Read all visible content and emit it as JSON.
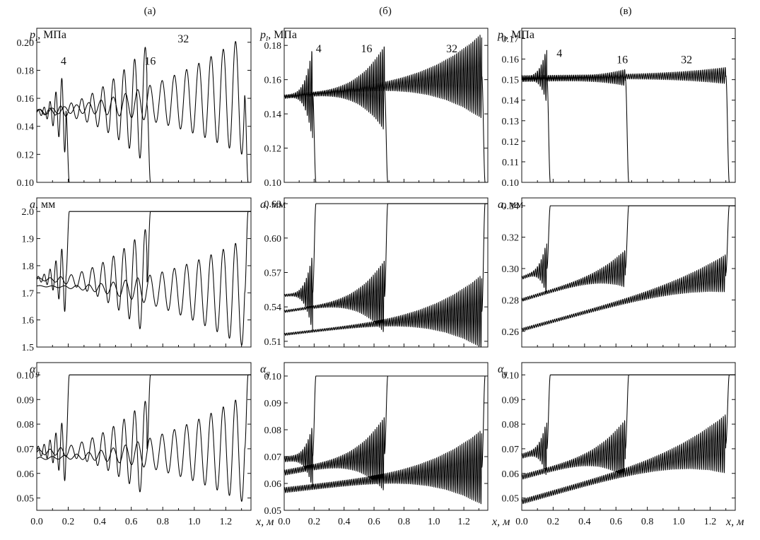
{
  "figure": {
    "column_labels": [
      "(а)",
      "(б)",
      "(в)"
    ],
    "x_axis_label": "x, м"
  },
  "chart_data": [
    {
      "id": "p-a",
      "column": 0,
      "row": 0,
      "type": "line",
      "ylabel_var": "p",
      "ylabel_sub": "l",
      "ylabel_unit": ", МПа",
      "xlim": [
        0,
        1.36
      ],
      "ylim": [
        0.1,
        0.21
      ],
      "xticks": [],
      "yticks": [
        "0.10",
        "0.12",
        "0.14",
        "0.16",
        "0.18",
        "0.20"
      ],
      "series_labels": [
        {
          "text": "4",
          "x": 0.17,
          "y": 0.184
        },
        {
          "text": "16",
          "x": 0.72,
          "y": 0.184
        },
        {
          "text": "32",
          "x": 0.93,
          "y": 0.2
        }
      ],
      "series": [
        {
          "name": "4",
          "front": 0.185,
          "osc": "slow",
          "base_start": 0.15,
          "base_end": 0.151,
          "amp_start": 0.002,
          "amp_end": 0.032,
          "after": 0.1
        },
        {
          "name": "16",
          "front": 0.7,
          "osc": "slow",
          "base_start": 0.15,
          "base_end": 0.155,
          "amp_start": 0.002,
          "amp_end": 0.043,
          "after": 0.1
        },
        {
          "name": "32",
          "front": 1.32,
          "osc": "slow",
          "base_start": 0.15,
          "base_end": 0.162,
          "amp_start": 0.002,
          "amp_end": 0.043,
          "after": 0.1
        }
      ]
    },
    {
      "id": "p-b",
      "column": 1,
      "row": 0,
      "type": "line",
      "ylabel_var": "p",
      "ylabel_sub": "l",
      "ylabel_unit": ", МПа",
      "xlim": [
        0,
        1.36
      ],
      "ylim": [
        0.1,
        0.19
      ],
      "xticks": [],
      "yticks": [
        "0.10",
        "0.12",
        "0.14",
        "0.16",
        "0.18"
      ],
      "series_labels": [
        {
          "text": "4",
          "x": 0.23,
          "y": 0.176
        },
        {
          "text": "16",
          "x": 0.55,
          "y": 0.176
        },
        {
          "text": "32",
          "x": 1.12,
          "y": 0.176
        }
      ],
      "series": [
        {
          "name": "4",
          "front": 0.19,
          "osc": "dense",
          "base_start": 0.15,
          "base_end": 0.152,
          "amp_start": 0.001,
          "amp_end": 0.028,
          "after": 0.1
        },
        {
          "name": "16",
          "front": 0.67,
          "osc": "dense",
          "base_start": 0.15,
          "base_end": 0.155,
          "amp_start": 0.001,
          "amp_end": 0.025,
          "after": 0.1
        },
        {
          "name": "32",
          "front": 1.32,
          "osc": "dense",
          "base_start": 0.15,
          "base_end": 0.162,
          "amp_start": 0.001,
          "amp_end": 0.025,
          "after": 0.1
        }
      ]
    },
    {
      "id": "p-v",
      "column": 2,
      "row": 0,
      "type": "line",
      "ylabel_var": "p",
      "ylabel_sub": "l",
      "ylabel_unit": ", МПа",
      "xlim": [
        0,
        1.36
      ],
      "ylim": [
        0.1,
        0.175
      ],
      "xticks": [],
      "yticks": [
        "0.10",
        "0.11",
        "0.12",
        "0.13",
        "0.14",
        "0.15",
        "0.16",
        "0.17"
      ],
      "series_labels": [
        {
          "text": "4",
          "x": 0.24,
          "y": 0.161
        },
        {
          "text": "16",
          "x": 0.64,
          "y": 0.158
        },
        {
          "text": "32",
          "x": 1.05,
          "y": 0.158
        }
      ],
      "series": [
        {
          "name": "4",
          "front": 0.16,
          "osc": "dense",
          "base_start": 0.15,
          "base_end": 0.152,
          "amp_start": 0.001,
          "amp_end": 0.014,
          "after": 0.1
        },
        {
          "name": "16",
          "front": 0.66,
          "osc": "dense",
          "base_start": 0.15,
          "base_end": 0.151,
          "amp_start": 0.001,
          "amp_end": 0.004,
          "after": 0.1
        },
        {
          "name": "32",
          "front": 1.3,
          "osc": "dense",
          "base_start": 0.151,
          "base_end": 0.152,
          "amp_start": 0.001,
          "amp_end": 0.004,
          "after": 0.1
        }
      ]
    },
    {
      "id": "a-a",
      "column": 0,
      "row": 1,
      "type": "line",
      "ylabel_var": "a",
      "ylabel_sub": "",
      "ylabel_unit": ", мм",
      "xlim": [
        0,
        1.36
      ],
      "ylim": [
        1.5,
        2.05
      ],
      "xticks": [],
      "yticks": [
        "1.5",
        "1.6",
        "1.7",
        "1.8",
        "1.9",
        "2.0"
      ],
      "series_labels": [],
      "series": [
        {
          "name": "4",
          "front": 0.185,
          "osc": "slow",
          "base_start": 1.75,
          "base_end": 1.76,
          "amp_start": 0.01,
          "amp_end": 0.14,
          "after": 2.0
        },
        {
          "name": "16",
          "front": 0.7,
          "osc": "slow",
          "base_start": 1.75,
          "base_end": 1.74,
          "amp_start": 0.005,
          "amp_end": 0.2,
          "after": 2.0
        },
        {
          "name": "32",
          "front": 1.32,
          "osc": "slow",
          "base_start": 1.725,
          "base_end": 1.7,
          "amp_start": 0.002,
          "amp_end": 0.2,
          "after": 2.0
        }
      ]
    },
    {
      "id": "a-b",
      "column": 1,
      "row": 1,
      "type": "line",
      "ylabel_var": "a",
      "ylabel_sub": "",
      "ylabel_unit": ", мм",
      "xlim": [
        0,
        1.36
      ],
      "ylim": [
        0.505,
        0.635
      ],
      "xticks": [],
      "yticks": [
        "0.51",
        "0.54",
        "0.57",
        "0.60",
        "0.63"
      ],
      "series_labels": [],
      "series": [
        {
          "name": "4",
          "front": 0.19,
          "osc": "dense",
          "base_start": 0.55,
          "base_end": 0.552,
          "amp_start": 0.001,
          "amp_end": 0.035,
          "after": 0.63
        },
        {
          "name": "16",
          "front": 0.67,
          "osc": "dense",
          "base_start": 0.536,
          "base_end": 0.549,
          "amp_start": 0.001,
          "amp_end": 0.032,
          "after": 0.63
        },
        {
          "name": "32",
          "front": 1.32,
          "osc": "dense",
          "base_start": 0.516,
          "base_end": 0.536,
          "amp_start": 0.001,
          "amp_end": 0.032,
          "after": 0.63
        }
      ]
    },
    {
      "id": "a-v",
      "column": 2,
      "row": 1,
      "type": "line",
      "ylabel_var": "a",
      "ylabel_sub": "",
      "ylabel_unit": ", мм",
      "xlim": [
        0,
        1.36
      ],
      "ylim": [
        0.25,
        0.345
      ],
      "xticks": [],
      "yticks": [
        "0.26",
        "0.28",
        "0.30",
        "0.32",
        "0.34"
      ],
      "series_labels": [],
      "series": [
        {
          "name": "4",
          "front": 0.16,
          "osc": "dense",
          "base_start": 0.294,
          "base_end": 0.3,
          "amp_start": 0.001,
          "amp_end": 0.018,
          "after": 0.34
        },
        {
          "name": "16",
          "front": 0.66,
          "osc": "dense",
          "base_start": 0.28,
          "base_end": 0.3,
          "amp_start": 0.001,
          "amp_end": 0.012,
          "after": 0.34
        },
        {
          "name": "32",
          "front": 1.3,
          "osc": "dense",
          "base_start": 0.261,
          "base_end": 0.297,
          "amp_start": 0.001,
          "amp_end": 0.012,
          "after": 0.34
        }
      ]
    },
    {
      "id": "ag-a",
      "column": 0,
      "row": 2,
      "type": "line",
      "ylabel_var": "α",
      "ylabel_sub": "g",
      "ylabel_unit": "",
      "xlim": [
        0,
        1.36
      ],
      "ylim": [
        0.045,
        0.105
      ],
      "xticks": [
        "0.0",
        "0.2",
        "0.4",
        "0.6",
        "0.8",
        "1.0",
        "1.2"
      ],
      "yticks": [
        "0.05",
        "0.06",
        "0.07",
        "0.08",
        "0.09",
        "0.10"
      ],
      "series_labels": [],
      "series": [
        {
          "name": "4",
          "front": 0.185,
          "osc": "slow",
          "base_start": 0.069,
          "base_end": 0.07,
          "amp_start": 0.002,
          "amp_end": 0.014,
          "after": 0.1
        },
        {
          "name": "16",
          "front": 0.7,
          "osc": "slow",
          "base_start": 0.0685,
          "base_end": 0.07,
          "amp_start": 0.001,
          "amp_end": 0.02,
          "after": 0.1
        },
        {
          "name": "32",
          "front": 1.32,
          "osc": "slow",
          "base_start": 0.066,
          "base_end": 0.07,
          "amp_start": 0.0005,
          "amp_end": 0.022,
          "after": 0.1
        }
      ]
    },
    {
      "id": "ag-b",
      "column": 1,
      "row": 2,
      "type": "line",
      "ylabel_var": "α",
      "ylabel_sub": "g",
      "ylabel_unit": "",
      "xlim": [
        0,
        1.36
      ],
      "ylim": [
        0.05,
        0.105
      ],
      "xticks": [
        "0.0",
        "0.2",
        "0.4",
        "0.6",
        "0.8",
        "1.0",
        "1.2"
      ],
      "yticks": [
        "0.05",
        "0.06",
        "0.07",
        "0.08",
        "0.09",
        "0.10"
      ],
      "series_labels": [],
      "series": [
        {
          "name": "4",
          "front": 0.19,
          "osc": "dense",
          "base_start": 0.069,
          "base_end": 0.07,
          "amp_start": 0.001,
          "amp_end": 0.012,
          "after": 0.1
        },
        {
          "name": "16",
          "front": 0.67,
          "osc": "dense",
          "base_start": 0.064,
          "base_end": 0.071,
          "amp_start": 0.001,
          "amp_end": 0.014,
          "after": 0.1
        },
        {
          "name": "32",
          "front": 1.32,
          "osc": "dense",
          "base_start": 0.0575,
          "base_end": 0.066,
          "amp_start": 0.001,
          "amp_end": 0.014,
          "after": 0.1
        }
      ]
    },
    {
      "id": "ag-v",
      "column": 2,
      "row": 2,
      "type": "line",
      "ylabel_var": "α",
      "ylabel_sub": "g",
      "ylabel_unit": "",
      "xlim": [
        0,
        1.36
      ],
      "ylim": [
        0.045,
        0.105
      ],
      "xticks": [
        "0.0",
        "0.2",
        "0.4",
        "0.6",
        "0.8",
        "1.0",
        "1.2"
      ],
      "yticks": [
        "0.05",
        "0.06",
        "0.07",
        "0.08",
        "0.09",
        "0.10"
      ],
      "series_labels": [],
      "series": [
        {
          "name": "4",
          "front": 0.16,
          "osc": "dense",
          "base_start": 0.067,
          "base_end": 0.07,
          "amp_start": 0.001,
          "amp_end": 0.012,
          "after": 0.1
        },
        {
          "name": "16",
          "front": 0.66,
          "osc": "dense",
          "base_start": 0.0585,
          "base_end": 0.07,
          "amp_start": 0.001,
          "amp_end": 0.012,
          "after": 0.1
        },
        {
          "name": "32",
          "front": 1.3,
          "osc": "dense",
          "base_start": 0.0485,
          "base_end": 0.072,
          "amp_start": 0.001,
          "amp_end": 0.012,
          "after": 0.1
        }
      ]
    }
  ]
}
